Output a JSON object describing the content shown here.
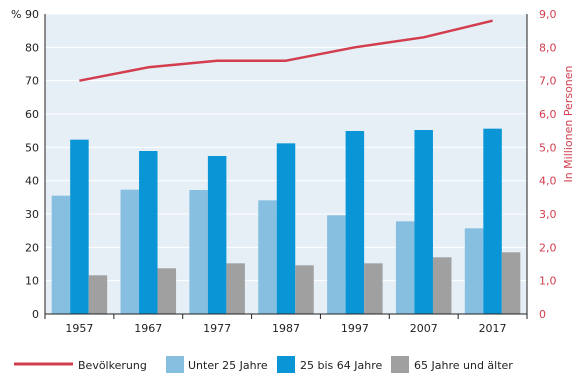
{
  "chart_data": {
    "type": "bar",
    "categories": [
      "1957",
      "1967",
      "1977",
      "1987",
      "1997",
      "2007",
      "2017"
    ],
    "series": [
      {
        "name": "Unter 25 Jahre",
        "kind": "bar",
        "axis": "left",
        "color": "#86bfe0",
        "values": [
          35.5,
          37.3,
          37.2,
          34.1,
          29.6,
          27.8,
          25.7
        ]
      },
      {
        "name": "25 bis 64 Jahre",
        "kind": "bar",
        "axis": "left",
        "color": "#0a96d6",
        "values": [
          52.3,
          48.9,
          47.4,
          51.2,
          54.9,
          55.2,
          55.6
        ]
      },
      {
        "name": "65 Jahre und älter",
        "kind": "bar",
        "axis": "left",
        "color": "#a0a0a0",
        "values": [
          11.6,
          13.7,
          15.2,
          14.6,
          15.2,
          17.0,
          18.5
        ]
      },
      {
        "name": "Bevölkerung",
        "kind": "line",
        "axis": "right",
        "color": "#d23e4e",
        "values": [
          7.0,
          7.4,
          7.6,
          7.6,
          8.0,
          8.3,
          8.8
        ]
      }
    ],
    "left_axis": {
      "unit_label": "%",
      "min": 0,
      "max": 90,
      "step": 10,
      "ticks": [
        "0",
        "10",
        "20",
        "30",
        "40",
        "50",
        "60",
        "70",
        "80",
        "90"
      ]
    },
    "right_axis": {
      "label": "In Millionen Personen",
      "min": 0,
      "max": 9,
      "step": 1,
      "ticks": [
        "0",
        "1,0",
        "2,0",
        "3,0",
        "4,0",
        "5,0",
        "6,0",
        "7,0",
        "8,0",
        "9,0"
      ],
      "color": "#d23e4e"
    },
    "grid": true,
    "grid_color": "#ffffff",
    "plot_background": "#e6eef6",
    "legend_position": "bottom",
    "legend": [
      {
        "label": "Bevölkerung",
        "kind": "line",
        "color": "#d23e4e"
      },
      {
        "label": "Unter 25 Jahre",
        "kind": "box",
        "color": "#86bfe0"
      },
      {
        "label": "25 bis 64 Jahre",
        "kind": "box",
        "color": "#0a96d6"
      },
      {
        "label": "65 Jahre und älter",
        "kind": "box",
        "color": "#a0a0a0"
      }
    ]
  }
}
